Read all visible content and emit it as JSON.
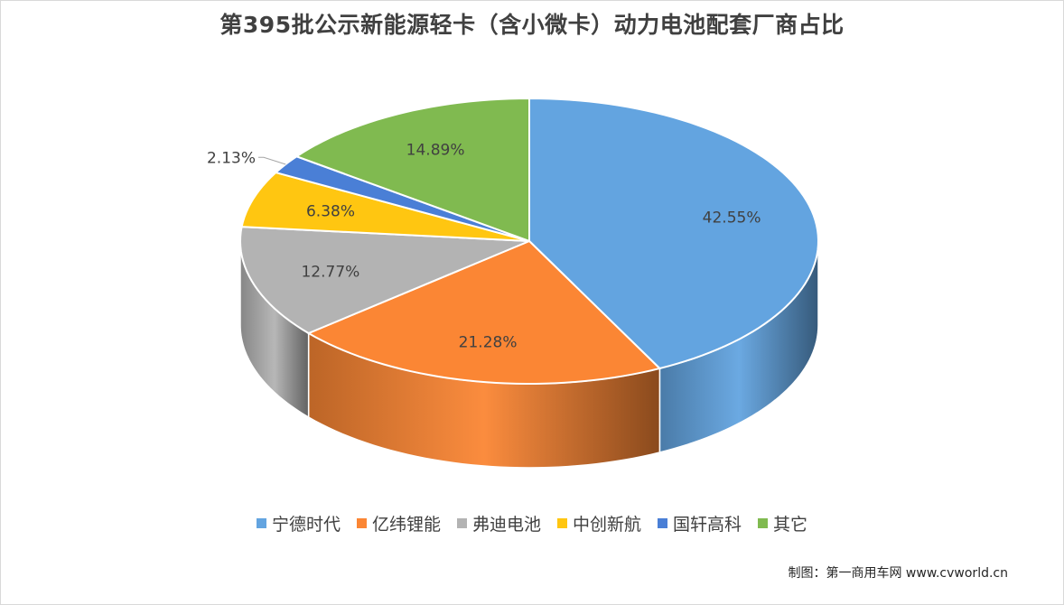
{
  "chart_data": {
    "type": "pie",
    "title": "第395批公示新能源轻卡（含小微卡）动力电池配套厂商占比",
    "slices": [
      {
        "name": "宁德时代",
        "value": 42.55,
        "label": "42.55%",
        "color": "#63a4e0"
      },
      {
        "name": "亿纬锂能",
        "value": 21.28,
        "label": "21.28%",
        "color": "#fb8634"
      },
      {
        "name": "弗迪电池",
        "value": 12.77,
        "label": "12.77%",
        "color": "#b3b3b3"
      },
      {
        "name": "中创新航",
        "value": 6.38,
        "label": "6.38%",
        "color": "#ffc611"
      },
      {
        "name": "国轩高科",
        "value": 2.13,
        "label": "2.13%",
        "color": "#4a7fd6"
      },
      {
        "name": "其它",
        "value": 14.89,
        "label": "14.89%",
        "color": "#80ba50"
      }
    ],
    "legend_position": "bottom",
    "three_d": true
  },
  "credit": "制图：第一商用车网 www.cvworld.cn"
}
